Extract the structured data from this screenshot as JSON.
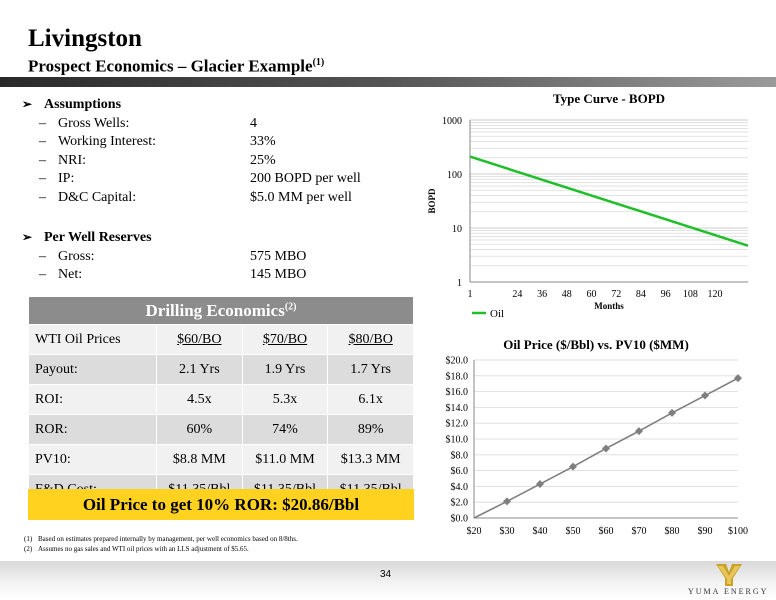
{
  "header": {
    "title": "Livingston",
    "subtitle": "Prospect Economics – Glacier Example",
    "subtitle_note": "(1)"
  },
  "assumptions": {
    "heading": "Assumptions",
    "items": [
      {
        "label": "Gross Wells:",
        "value": "4"
      },
      {
        "label": "Working Interest:",
        "value": "33%"
      },
      {
        "label": "NRI:",
        "value": "25%"
      },
      {
        "label": "IP:",
        "value": "200 BOPD per well"
      },
      {
        "label": "D&C Capital:",
        "value": "$5.0 MM per well"
      }
    ]
  },
  "reserves": {
    "heading": "Per Well Reserves",
    "items": [
      {
        "label": "Gross:",
        "value": "575 MBO"
      },
      {
        "label": "Net:",
        "value": "145 MBO"
      }
    ]
  },
  "drilling_table": {
    "title": "Drilling Economics",
    "title_note": "(2)",
    "header_row": [
      "WTI Oil Prices",
      "$60/BO",
      "$70/BO",
      "$80/BO"
    ],
    "rows": [
      [
        "Payout:",
        "2.1 Yrs",
        "1.9 Yrs",
        "1.7 Yrs"
      ],
      [
        "ROI:",
        "4.5x",
        "5.3x",
        "6.1x"
      ],
      [
        "ROR:",
        "60%",
        "74%",
        "89%"
      ],
      [
        "PV10:",
        "$8.8 MM",
        "$11.0 MM",
        "$13.3 MM"
      ],
      [
        "F&D Cost:",
        "$11.35/Bbl",
        "$11.35/Bbl",
        "$11.35/Bbl"
      ]
    ]
  },
  "callout": {
    "text": "Oil Price to get 10% ROR: $20.86/Bbl",
    "color": "#ffd21f"
  },
  "footnotes": [
    {
      "num": "(1)",
      "text": "Based on estimates prepared internally by management, per well economics based on 8/8ths."
    },
    {
      "num": "(2)",
      "text": "Assumes no gas sales and WTI oil prices with an LLS adjustment of $5.65."
    }
  ],
  "page_number": "34",
  "logo": {
    "text": "YUMA ENERGY",
    "color": "#c9a227"
  },
  "chart_data": [
    {
      "type": "line",
      "title": "Type Curve - BOPD",
      "xlabel": "Months",
      "ylabel": "BOPD",
      "yscale": "log",
      "ylim": [
        1,
        1000
      ],
      "yticks": [
        "1",
        "10",
        "100",
        "1000"
      ],
      "xlim": [
        1,
        136
      ],
      "xticks": [
        1,
        24,
        36,
        48,
        60,
        72,
        84,
        96,
        108,
        120
      ],
      "grid": true,
      "legend": "bottom-left",
      "series": [
        {
          "name": "Oil",
          "color": "#1fbf2a",
          "x": [
            1,
            136
          ],
          "y": [
            210,
            4.7
          ]
        }
      ]
    },
    {
      "type": "line",
      "title": "Oil Price ($/Bbl) vs. PV10 ($MM)",
      "xlabel": "",
      "ylabel": "",
      "categories": [
        "$20",
        "$30",
        "$40",
        "$50",
        "$60",
        "$70",
        "$80",
        "$90",
        "$100"
      ],
      "yticks": [
        "$0.0",
        "$2.0",
        "$4.0",
        "$6.0",
        "$8.0",
        "$10.0",
        "$12.0",
        "$14.0",
        "$16.0",
        "$18.0",
        "$20.0"
      ],
      "ylim": [
        0,
        20
      ],
      "grid": true,
      "series": [
        {
          "color": "#7f7f7f",
          "values": [
            0.0,
            2.1,
            4.3,
            6.5,
            8.8,
            11.0,
            13.3,
            15.5,
            17.7
          ]
        }
      ]
    }
  ]
}
